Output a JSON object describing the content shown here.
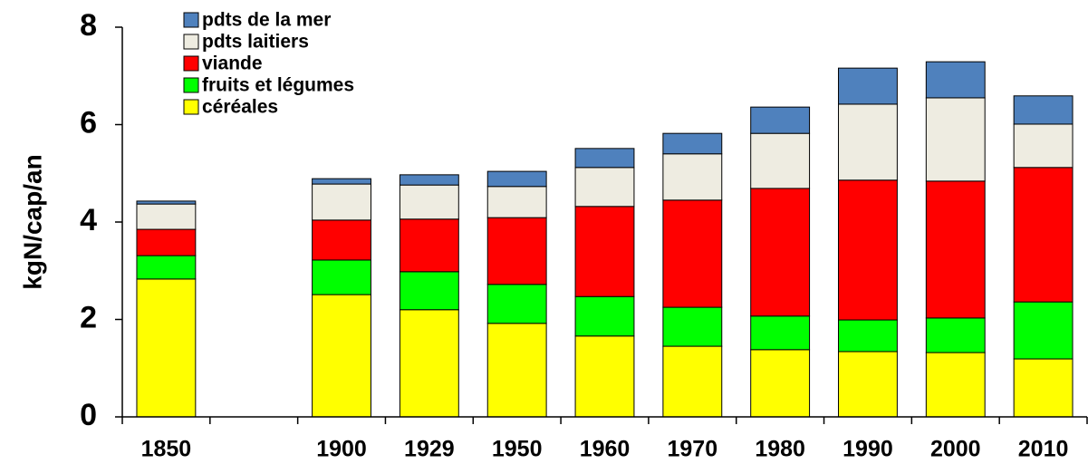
{
  "chart_data": {
    "type": "stacked_bar",
    "y_label": "kgN/cap/an",
    "categories": [
      "1850",
      null,
      "1900",
      "1929",
      "1950",
      "1960",
      "1970",
      "1980",
      "1990",
      "2000",
      "2010"
    ],
    "series": [
      {
        "name": "céréales",
        "color": "#ffff00",
        "values": [
          2.83,
          null,
          2.51,
          2.2,
          1.92,
          1.66,
          1.45,
          1.38,
          1.34,
          1.32,
          1.19
        ]
      },
      {
        "name": "fruits et légumes",
        "color": "#00ff00",
        "values": [
          0.48,
          null,
          0.71,
          0.78,
          0.8,
          0.81,
          0.8,
          0.69,
          0.65,
          0.71,
          1.17
        ]
      },
      {
        "name": "viande",
        "color": "#ff0000",
        "values": [
          0.54,
          null,
          0.82,
          1.08,
          1.37,
          1.85,
          2.2,
          2.62,
          2.87,
          2.81,
          2.76
        ]
      },
      {
        "name": "pdts laitiers",
        "color": "#eeece1",
        "values": [
          0.52,
          null,
          0.74,
          0.7,
          0.64,
          0.8,
          0.95,
          1.13,
          1.56,
          1.71,
          0.89
        ]
      },
      {
        "name": "pdts de la mer",
        "color": "#4f81bd",
        "values": [
          0.06,
          null,
          0.11,
          0.21,
          0.31,
          0.39,
          0.42,
          0.54,
          0.74,
          0.74,
          0.58
        ]
      }
    ],
    "ylim": [
      0,
      8
    ],
    "yticks": [
      0,
      2,
      4,
      6,
      8
    ],
    "legend": "upper left"
  }
}
